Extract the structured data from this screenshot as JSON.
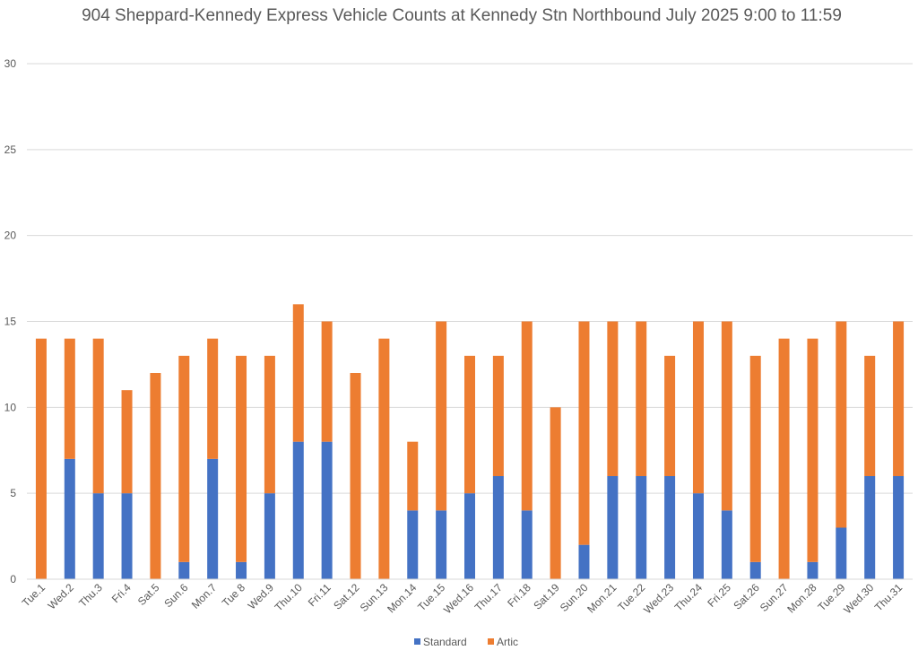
{
  "chart_data": {
    "type": "bar",
    "stacked": true,
    "title": "904 Sheppard-Kennedy Express Vehicle Counts at Kennedy Stn Northbound July 2025  9:00 to 11:59",
    "xlabel": "",
    "ylabel": "",
    "ylim": [
      0,
      30
    ],
    "yticks": [
      0,
      5,
      10,
      15,
      20,
      25,
      30
    ],
    "grid": true,
    "legend_position": "bottom",
    "categories": [
      "Tue.1",
      "Wed.2",
      "Thu.3",
      "Fri.4",
      "Sat.5",
      "Sun.6",
      "Mon.7",
      "Tue 8",
      "Wed.9",
      "Thu.10",
      "Fri.11",
      "Sat.12",
      "Sun.13",
      "Mon.14",
      "Tue.15",
      "Wed.16",
      "Thu.17",
      "Fri.18",
      "Sat.19",
      "Sun.20",
      "Mon.21",
      "Tue.22",
      "Wed.23",
      "Thu.24",
      "Fri.25",
      "Sat.26",
      "Sun.27",
      "Mon.28",
      "Tue.29",
      "Wed.30",
      "Thu.31"
    ],
    "series": [
      {
        "name": "Standard",
        "color": "#4472C4",
        "values": [
          0,
          7,
          5,
          5,
          0,
          1,
          7,
          1,
          5,
          8,
          8,
          0,
          0,
          4,
          4,
          5,
          6,
          4,
          0,
          2,
          6,
          6,
          6,
          5,
          4,
          1,
          0,
          1,
          3,
          6,
          6
        ]
      },
      {
        "name": "Artic",
        "color": "#ED7D31",
        "values": [
          14,
          7,
          9,
          6,
          12,
          12,
          7,
          12,
          8,
          8,
          7,
          12,
          14,
          4,
          11,
          8,
          7,
          11,
          10,
          13,
          9,
          9,
          7,
          10,
          11,
          12,
          14,
          13,
          12,
          7,
          9
        ]
      }
    ]
  }
}
